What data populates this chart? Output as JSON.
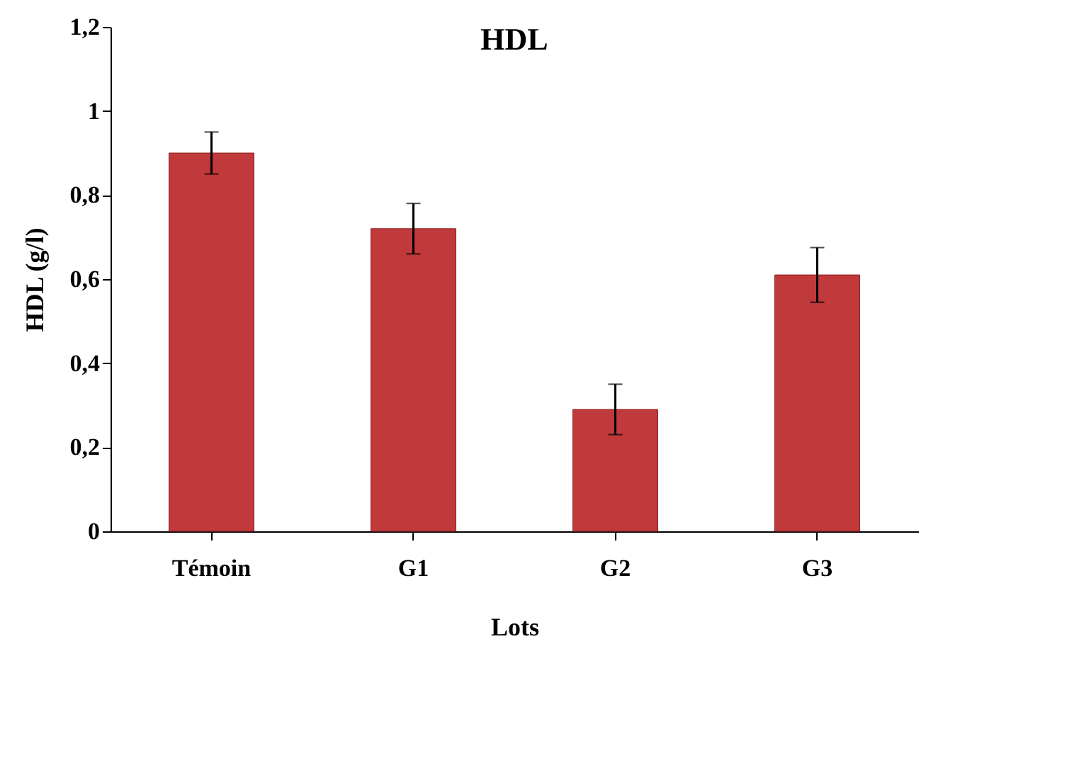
{
  "chart_data": {
    "type": "bar",
    "title": "HDL",
    "xlabel": "Lots",
    "ylabel": "HDL (g/l)",
    "categories": [
      "Témoin",
      "G1",
      "G2",
      "G3"
    ],
    "values": [
      0.9,
      0.72,
      0.29,
      0.61
    ],
    "errors": [
      0.05,
      0.06,
      0.06,
      0.065
    ],
    "color": "#c0393b",
    "ylim": [
      0,
      1.2
    ],
    "yticks": [
      0,
      {
        "value": 0.2,
        "label": "0,2"
      },
      {
        "value": 0.4,
        "label": "0,4"
      },
      {
        "value": 0.6,
        "label": "0,6"
      },
      {
        "value": 0.8,
        "label": "0,8"
      },
      1,
      {
        "value": 1.2,
        "label": "1,2"
      }
    ],
    "grid": false
  }
}
